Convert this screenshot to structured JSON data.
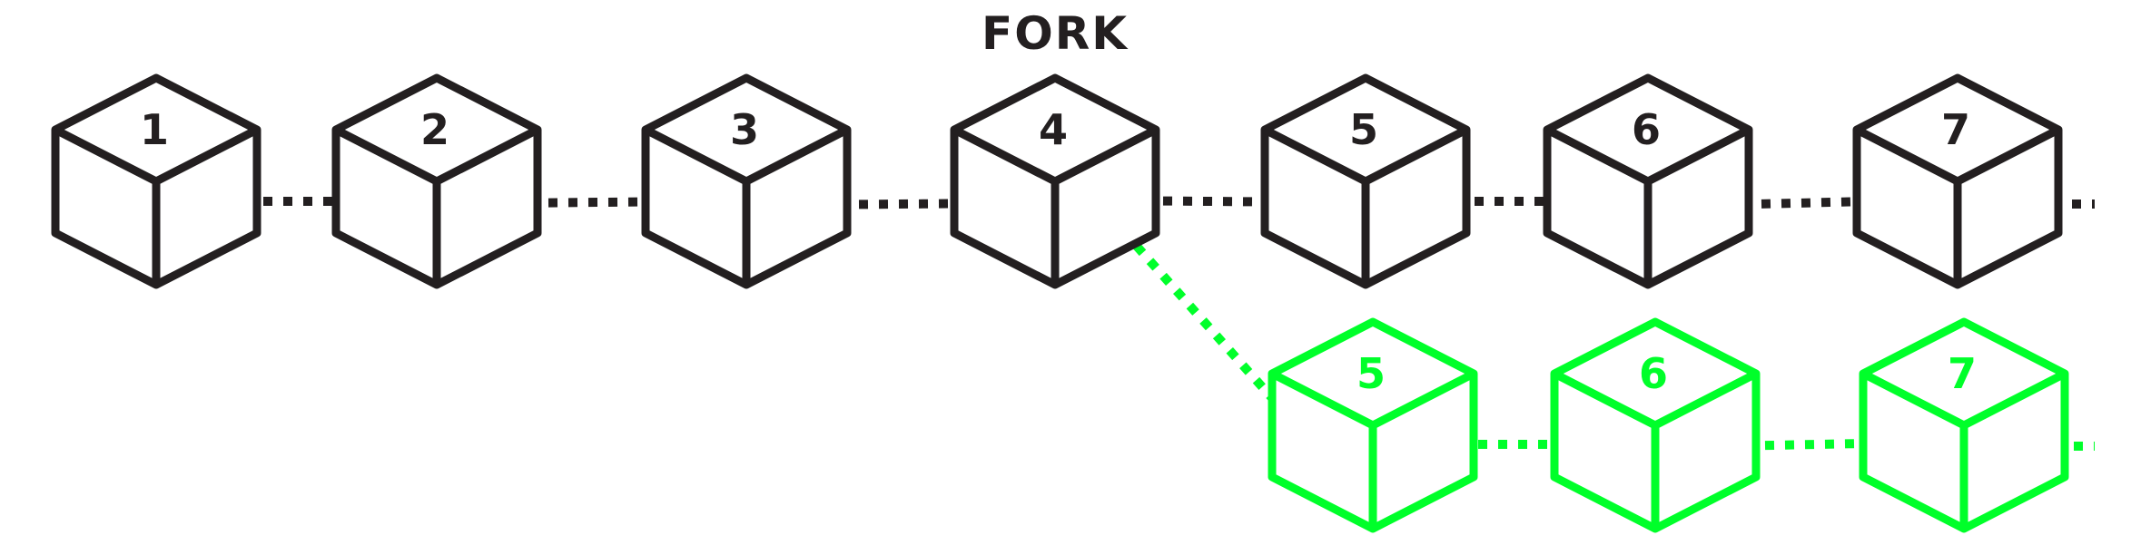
{
  "title": "FORK",
  "colors": {
    "main": "#231f20",
    "fork": "#00ff2a"
  },
  "main_chain": {
    "blocks": [
      "1",
      "2",
      "3",
      "4",
      "5",
      "6",
      "7"
    ]
  },
  "fork_chain": {
    "forks_from": "4",
    "blocks": [
      "5",
      "6",
      "7"
    ]
  }
}
